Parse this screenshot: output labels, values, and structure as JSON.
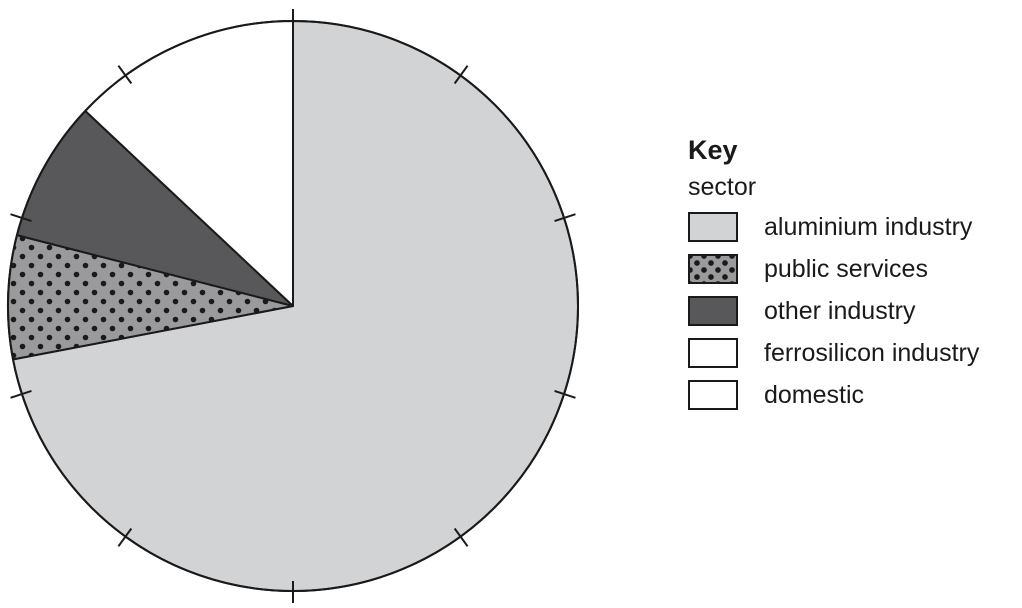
{
  "chart_data": {
    "type": "pie",
    "key": {
      "title": "Key",
      "subtitle": "sector"
    },
    "slices": [
      {
        "name": "aluminium industry",
        "value": 72,
        "fill": "#d2d3d5",
        "pattern": "none"
      },
      {
        "name": "public services",
        "value": 7,
        "fill": "#9a9a9c",
        "pattern": "dots"
      },
      {
        "name": "other industry",
        "value": 8,
        "fill": "#58585a",
        "pattern": "none"
      },
      {
        "name": "ferrosilicon industry",
        "value": 0,
        "fill": "#ffffff",
        "pattern": "none"
      },
      {
        "name": "domestic",
        "value": 13,
        "fill": "#ffffff",
        "pattern": "none"
      }
    ],
    "start_angle": "12 o'clock",
    "direction": "clockwise",
    "tick_marks": 10
  },
  "colors": {
    "outline": "#1a1a1a",
    "dot": "#1a1a1a"
  }
}
